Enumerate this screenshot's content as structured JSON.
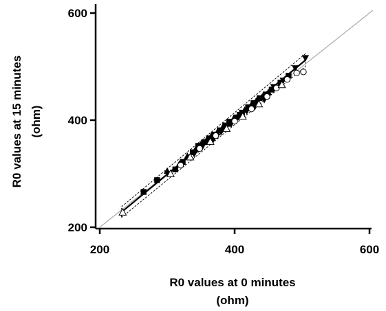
{
  "chart_data": {
    "type": "scatter",
    "title": "",
    "xlabel": {
      "line1": "R0 values at 0 minutes",
      "line2": "(ohm)"
    },
    "ylabel": {
      "line1": "R0 values at 15 minutes",
      "line2": "(ohm)"
    },
    "xlim": [
      200,
      600
    ],
    "ylim": [
      200,
      600
    ],
    "x_ticks": [
      "200",
      "400",
      "600"
    ],
    "y_ticks": [
      "200",
      "400",
      "600"
    ],
    "grid": false,
    "legend": "none",
    "identity_line": {
      "from": [
        200,
        200
      ],
      "to": [
        605,
        605
      ],
      "color": "#aaaaaa"
    },
    "regression_line": {
      "from": [
        232,
        228
      ],
      "to": [
        505,
        512
      ]
    },
    "confidence_band": {
      "lower": [
        [
          232,
          218
        ],
        [
          505,
          500
        ]
      ],
      "upper": [
        [
          232,
          238
        ],
        [
          505,
          524
        ]
      ]
    },
    "series": [
      {
        "marker": "square",
        "points": [
          [
            265,
            266
          ],
          [
            285,
            288
          ],
          [
            312,
            308
          ],
          [
            323,
            322
          ],
          [
            338,
            340
          ],
          [
            346,
            352
          ],
          [
            355,
            359
          ],
          [
            362,
            366
          ],
          [
            370,
            373
          ],
          [
            378,
            381
          ],
          [
            386,
            390
          ],
          [
            392,
            397
          ],
          [
            402,
            405
          ],
          [
            411,
            414
          ],
          [
            420,
            424
          ],
          [
            428,
            432
          ],
          [
            437,
            441
          ],
          [
            446,
            448
          ],
          [
            455,
            457
          ],
          [
            468,
            470
          ],
          [
            480,
            483
          ]
        ]
      },
      {
        "marker": "triangle-up",
        "points": [
          [
            300,
            305
          ],
          [
            318,
            318
          ],
          [
            330,
            333
          ],
          [
            342,
            345
          ],
          [
            350,
            355
          ],
          [
            358,
            362
          ],
          [
            366,
            372
          ],
          [
            374,
            377
          ],
          [
            382,
            386
          ],
          [
            390,
            393
          ],
          [
            398,
            402
          ],
          [
            405,
            409
          ],
          [
            415,
            419
          ],
          [
            424,
            427
          ],
          [
            432,
            436
          ],
          [
            441,
            444
          ],
          [
            450,
            452
          ]
        ]
      },
      {
        "marker": "triangle-down",
        "points": [
          [
            340,
            337
          ],
          [
            352,
            350
          ],
          [
            368,
            363
          ],
          [
            380,
            378
          ],
          [
            395,
            393
          ],
          [
            408,
            410
          ],
          [
            418,
            417
          ],
          [
            430,
            425
          ],
          [
            444,
            438
          ],
          [
            458,
            462
          ],
          [
            472,
            474
          ],
          [
            490,
            497
          ],
          [
            505,
            516
          ]
        ]
      },
      {
        "marker": "circle-open",
        "points": [
          [
            320,
            316
          ],
          [
            348,
            347
          ],
          [
            372,
            371
          ],
          [
            400,
            398
          ],
          [
            425,
            421
          ],
          [
            448,
            444
          ],
          [
            462,
            460
          ],
          [
            478,
            476
          ],
          [
            492,
            488
          ],
          [
            502,
            490
          ]
        ]
      },
      {
        "marker": "triangle-open",
        "points": [
          [
            234,
            228
          ],
          [
            305,
            300
          ],
          [
            334,
            331
          ],
          [
            364,
            360
          ],
          [
            388,
            384
          ],
          [
            412,
            407
          ],
          [
            436,
            430
          ],
          [
            470,
            466
          ]
        ]
      }
    ]
  }
}
